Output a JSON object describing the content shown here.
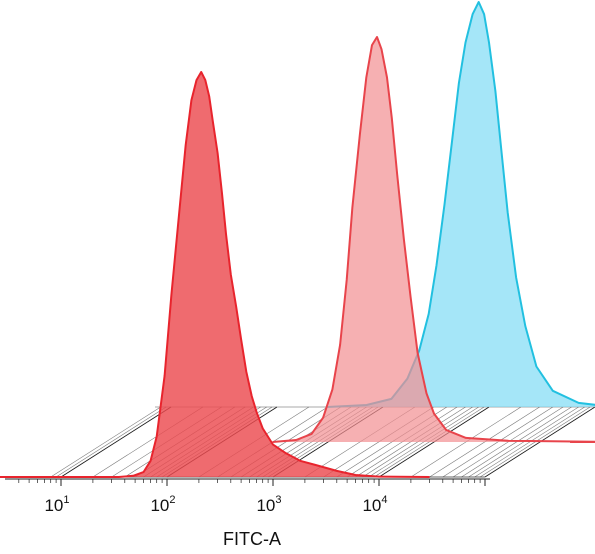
{
  "chart_data": {
    "type": "area",
    "style": "3D offset overlay histogram (flow cytometry)",
    "xlabel": "FITC-A",
    "x_scale": "log",
    "x_ticks": [
      {
        "value": 10,
        "base": "10",
        "exp": "1"
      },
      {
        "value": 100,
        "base": "10",
        "exp": "2"
      },
      {
        "value": 1000,
        "base": "10",
        "exp": "3"
      },
      {
        "value": 10000,
        "base": "10",
        "exp": "4"
      }
    ],
    "xlim": [
      2,
      800000
    ],
    "ylim": [
      0,
      1
    ],
    "grid": true,
    "legend": "none",
    "series": [
      {
        "color": "#e8242d",
        "fill": "#ec4a4f",
        "depth": 0,
        "x": [
          2,
          8,
          20,
          35,
          48,
          60,
          70,
          80,
          95,
          110,
          130,
          150,
          170,
          190,
          210,
          230,
          250,
          270,
          300,
          330,
          360,
          400,
          450,
          500,
          560,
          630,
          700,
          800,
          1000,
          1300,
          1800,
          2500,
          4000,
          6000,
          10000,
          30000
        ],
        "values": [
          0.0,
          0.0,
          0.0,
          0.0,
          0.003,
          0.012,
          0.04,
          0.1,
          0.25,
          0.45,
          0.65,
          0.82,
          0.93,
          0.98,
          1.0,
          0.98,
          0.94,
          0.88,
          0.8,
          0.7,
          0.6,
          0.5,
          0.42,
          0.34,
          0.26,
          0.2,
          0.16,
          0.12,
          0.08,
          0.06,
          0.04,
          0.03,
          0.015,
          0.005,
          0.001,
          0.0
        ]
      },
      {
        "color": "#e8444b",
        "fill": "#f28f92",
        "depth": 1,
        "x": [
          300,
          500,
          700,
          900,
          1100,
          1300,
          1500,
          1700,
          2000,
          2300,
          2600,
          2900,
          3200,
          3600,
          4000,
          4500,
          5200,
          6000,
          7000,
          8500,
          10000,
          13000,
          20000,
          50000,
          500000
        ],
        "values": [
          0.0,
          0.005,
          0.02,
          0.06,
          0.13,
          0.24,
          0.4,
          0.58,
          0.76,
          0.9,
          0.98,
          1.0,
          0.97,
          0.9,
          0.8,
          0.66,
          0.5,
          0.36,
          0.22,
          0.12,
          0.07,
          0.03,
          0.01,
          0.003,
          0.0
        ]
      },
      {
        "color": "#22c0e0",
        "fill": "#7fdcf5",
        "depth": 2,
        "x": [
          300,
          700,
          1200,
          1700,
          2200,
          2700,
          3200,
          3800,
          4500,
          5200,
          6000,
          7000,
          8000,
          9000,
          10000,
          11500,
          13000,
          15000,
          18000,
          22000,
          28000,
          40000,
          70000,
          150000
        ],
        "values": [
          0.0,
          0.005,
          0.02,
          0.07,
          0.14,
          0.23,
          0.35,
          0.5,
          0.66,
          0.8,
          0.9,
          0.97,
          1.0,
          0.97,
          0.9,
          0.78,
          0.64,
          0.48,
          0.32,
          0.2,
          0.1,
          0.04,
          0.01,
          0.0
        ]
      }
    ]
  }
}
